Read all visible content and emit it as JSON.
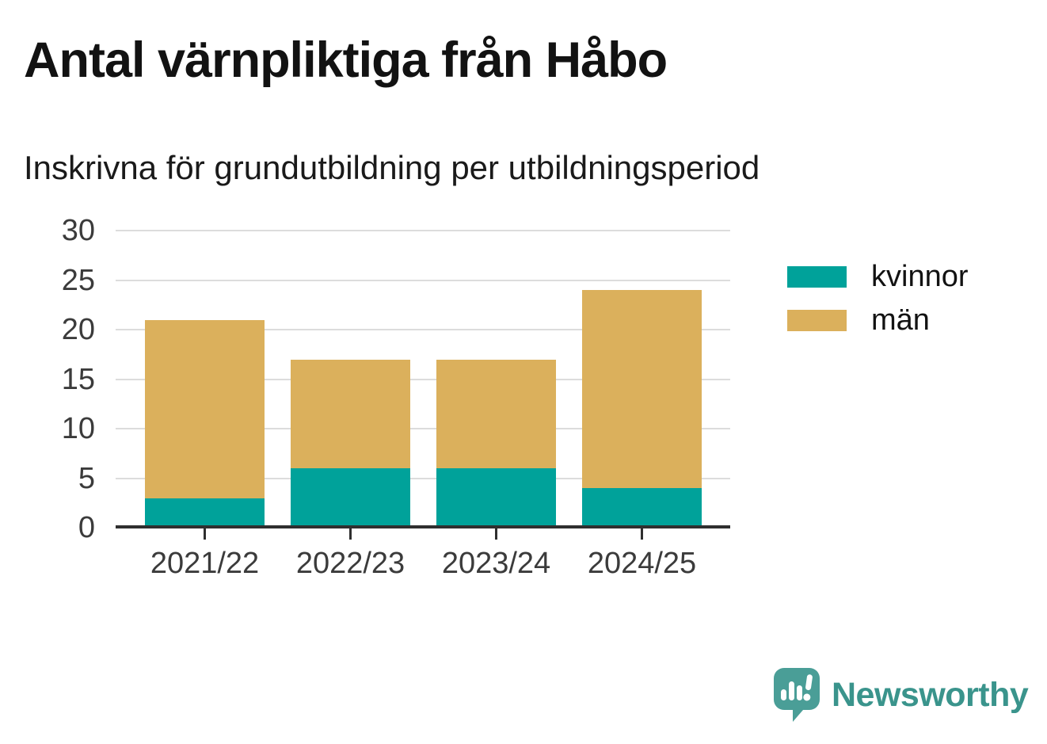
{
  "title": "Antal värnpliktiga från Håbo",
  "subtitle": "Inskrivna för grundutbildning per utbildningsperiod",
  "colors": {
    "text-title": "#121212",
    "text-subtitle": "#1a1a1a",
    "text-axis": "#3b3b3b",
    "grid": "#dcdcdc",
    "axis-line": "#2f2f2f",
    "legend-text": "#121212",
    "logo": "#4a9e97",
    "logo-text": "#3a948c"
  },
  "chart_data": {
    "type": "bar",
    "stacked": true,
    "title": "Antal värnpliktiga från Håbo",
    "subtitle": "Inskrivna för grundutbildning per utbildningsperiod",
    "categories": [
      "2021/22",
      "2022/23",
      "2023/24",
      "2024/25"
    ],
    "series": [
      {
        "name": "kvinnor",
        "color": "#00a29a",
        "values": [
          3,
          6,
          6,
          4
        ]
      },
      {
        "name": "män",
        "color": "#dbb05c",
        "values": [
          18,
          11,
          11,
          20
        ]
      }
    ],
    "totals": [
      21,
      17,
      17,
      24
    ],
    "xlabel": "",
    "ylabel": "",
    "ylim": [
      0,
      30
    ],
    "yticks": [
      0,
      5,
      10,
      15,
      20,
      25,
      30
    ],
    "grid": true,
    "legend_position": "right"
  },
  "legend": {
    "items": [
      {
        "label": "kvinnor"
      },
      {
        "label": "män"
      }
    ]
  },
  "footer": {
    "brand": "Newsworthy"
  }
}
